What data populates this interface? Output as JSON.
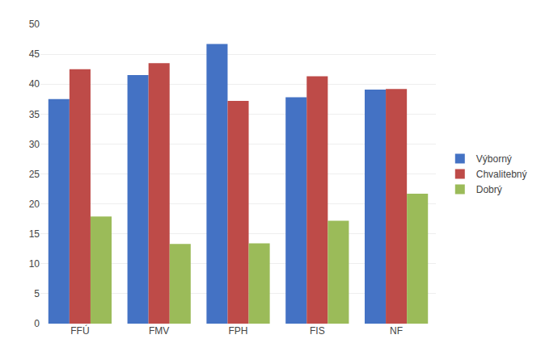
{
  "chart_data": {
    "type": "bar",
    "categories": [
      "FFÚ",
      "FMV",
      "FPH",
      "FIS",
      "NF"
    ],
    "series": [
      {
        "name": "Výborný",
        "color": "#4472C4",
        "values": [
          37.5,
          41.5,
          46.7,
          37.8,
          39.1
        ]
      },
      {
        "name": "Chvalitebný",
        "color": "#BE4B48",
        "values": [
          42.5,
          43.5,
          37.2,
          41.3,
          39.2
        ]
      },
      {
        "name": "Dobrý",
        "color": "#9BBB59",
        "values": [
          17.9,
          13.3,
          13.4,
          17.2,
          21.7
        ]
      }
    ],
    "ylim": [
      0,
      50
    ],
    "yticks": [
      0,
      5,
      10,
      15,
      20,
      25,
      30,
      35,
      40,
      45,
      50
    ],
    "grid": true,
    "legend": "right"
  }
}
